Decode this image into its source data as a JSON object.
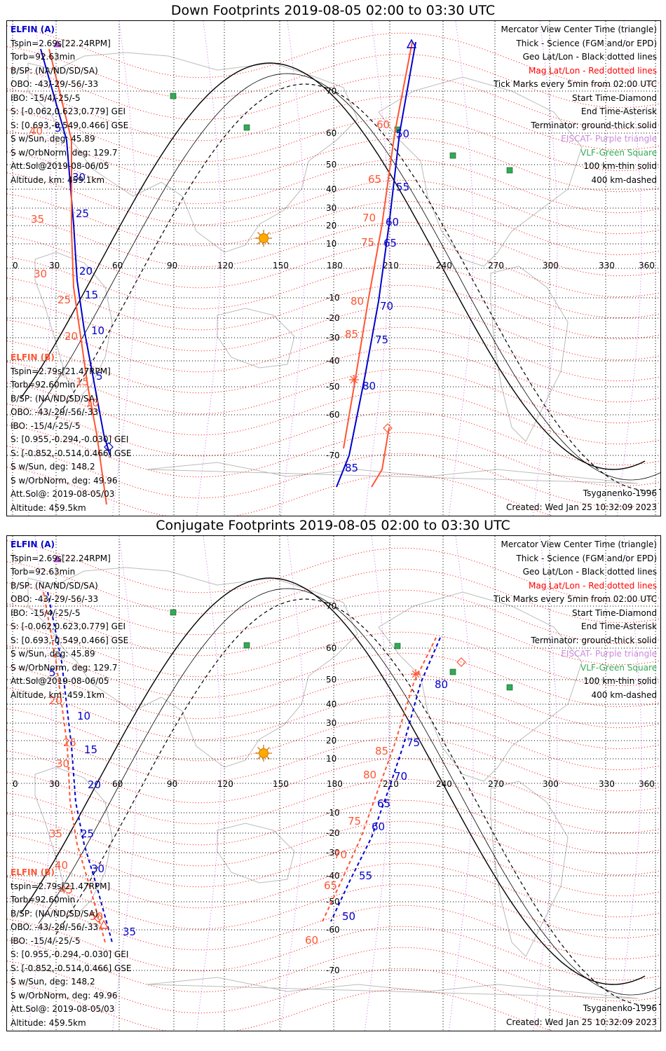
{
  "panels": [
    {
      "title": "Down Footprints 2019-08-05 02:00 to 03:30 UTC",
      "sc_a": {
        "name": "ELFIN (A)",
        "lines": [
          "Tspin=2.69s[22.24RPM]",
          "Torb=92.63min",
          "B/SP: (NA/ND/SD/SA)",
          "OBO: -43/-29/-56/-33",
          "IBO: -15/4/-25/-5",
          "S: [-0.062,0.623,0.779] GEI",
          "S: [0.693,-0.549,0.466] GSE",
          "S w/Sun, deg: 45.89",
          "S w/OrbNorm, deg: 129.7",
          "Att.Sol@2019-08-06/05",
          "Altitude, km: 459.1km"
        ]
      },
      "sc_b": {
        "name": "ELFIN (B)",
        "lines": [
          "Tspin=2.79s[21.47RPM]",
          "Torb=92.60min",
          "B/SP: (NA/ND/SD/SA)",
          "OBO: -43/-29/-56/-33",
          "IBO: -15/4/-25/-5",
          "S: [0.955,-0.294,-0.030] GEI",
          "S: [-0.852,-0.514,0.466] GSE",
          "S w/Sun, deg: 148.2",
          "S w/OrbNorm, deg: 49.96",
          "Att.Sol@: 2019-08-05/03",
          "Altitude: 459.5km"
        ]
      },
      "ticks_a": [
        {
          "text": "5",
          "color": "#0000cc"
        },
        {
          "text": "30",
          "color": "#0000cc"
        },
        {
          "text": "25",
          "color": "#0000cc"
        },
        {
          "text": "20",
          "color": "#0000cc"
        },
        {
          "text": "15",
          "color": "#0000cc"
        },
        {
          "text": "10",
          "color": "#0000cc"
        },
        {
          "text": "5",
          "color": "#0000cc"
        },
        {
          "text": "50",
          "color": "#0000cc"
        },
        {
          "text": "55",
          "color": "#0000cc"
        },
        {
          "text": "60",
          "color": "#0000cc"
        },
        {
          "text": "65",
          "color": "#0000cc"
        },
        {
          "text": "70",
          "color": "#0000cc"
        },
        {
          "text": "75",
          "color": "#0000cc"
        },
        {
          "text": "80",
          "color": "#0000cc"
        },
        {
          "text": "85",
          "color": "#0000cc"
        }
      ],
      "ticks_b": [
        {
          "text": "40",
          "color": "#ff5533"
        },
        {
          "text": "35",
          "color": "#ff5533"
        },
        {
          "text": "30",
          "color": "#ff5533"
        },
        {
          "text": "25",
          "color": "#ff5533"
        },
        {
          "text": "20",
          "color": "#ff5533"
        },
        {
          "text": "15",
          "color": "#ff5533"
        },
        {
          "text": "10",
          "color": "#ff5533"
        },
        {
          "text": "60",
          "color": "#ff5533"
        },
        {
          "text": "65",
          "color": "#ff5533"
        },
        {
          "text": "70",
          "color": "#ff5533"
        },
        {
          "text": "75",
          "color": "#ff5533"
        },
        {
          "text": "80",
          "color": "#ff5533"
        },
        {
          "text": "85",
          "color": "#ff5533"
        }
      ]
    },
    {
      "title": "Conjugate Footprints 2019-08-05 02:00 to 03:30 UTC",
      "sc_a": {
        "name": "ELFIN (A)",
        "lines": [
          "Tspin=2.69s[22.24RPM]",
          "Torb=92.63min",
          "B/SP: (NA/ND/SD/SA)",
          "OBO: -43/-29/-56/-33",
          "IBO: -15/4/-25/-5",
          "S: [-0.062,0.623,0.779] GEI",
          "S: [0.693,-0.549,0.466] GSE",
          "S w/Sun, deg: 45.89",
          "S w/OrbNorm, deg: 129.7",
          "Att.Sol@2019-08-06/05",
          "Altitude, km: 459.1km"
        ]
      },
      "sc_b": {
        "name": "ELFIN (B)",
        "lines": [
          "tspin=2.79s[21.47RPM]",
          "Torb=92.60min",
          "B/SP: (NA/ND/SD/SA)",
          "OBO: -43/-29/-56/-33",
          "IBO: -15/4/-25/-5",
          "S: [0.955,-0.294,-0.030] GEI",
          "S: [-0.852,-0.514,0.466] GSE",
          "S w/Sun, deg: 148.2",
          "S w/OrbNorm, deg: 49.96",
          "Att.Sol@: 2019-08-05/03",
          "Altitude: 459.5km"
        ]
      },
      "ticks_a": [
        {
          "text": "5",
          "color": "#0000cc"
        },
        {
          "text": "10",
          "color": "#0000cc"
        },
        {
          "text": "15",
          "color": "#0000cc"
        },
        {
          "text": "20",
          "color": "#0000cc"
        },
        {
          "text": "25",
          "color": "#0000cc"
        },
        {
          "text": "30",
          "color": "#0000cc"
        },
        {
          "text": "35",
          "color": "#0000cc"
        },
        {
          "text": "50",
          "color": "#0000cc"
        },
        {
          "text": "55",
          "color": "#0000cc"
        },
        {
          "text": "60",
          "color": "#0000cc"
        },
        {
          "text": "65",
          "color": "#0000cc"
        },
        {
          "text": "70",
          "color": "#0000cc"
        },
        {
          "text": "75",
          "color": "#0000cc"
        },
        {
          "text": "80",
          "color": "#0000cc"
        }
      ],
      "ticks_b": [
        {
          "text": "20",
          "color": "#ff5533"
        },
        {
          "text": "25",
          "color": "#ff5533"
        },
        {
          "text": "30",
          "color": "#ff5533"
        },
        {
          "text": "35",
          "color": "#ff5533"
        },
        {
          "text": "40",
          "color": "#ff5533"
        },
        {
          "text": "45",
          "color": "#ff5533"
        },
        {
          "text": "50",
          "color": "#ff5533"
        },
        {
          "text": "60",
          "color": "#ff5533"
        },
        {
          "text": "65",
          "color": "#ff5533"
        },
        {
          "text": "70",
          "color": "#ff5533"
        },
        {
          "text": "75",
          "color": "#ff5533"
        },
        {
          "text": "80",
          "color": "#ff5533"
        },
        {
          "text": "85",
          "color": "#ff5533"
        }
      ]
    }
  ],
  "legend": [
    {
      "text": "Mercator View Center Time (triangle)",
      "color": "#000000"
    },
    {
      "text": "Thick - Science (FGM and/or EPD)",
      "color": "#000000"
    },
    {
      "text": "Geo Lat/Lon - Black dotted lines",
      "color": "#000000"
    },
    {
      "text": "Mag Lat/Lon - Red dotted lines",
      "color": "#ff0000"
    },
    {
      "text": "Tick Marks every 5min from 02:00 UTC",
      "color": "#000000"
    },
    {
      "text": "Start Time-Diamond",
      "color": "#000000"
    },
    {
      "text": "End Time-Asterisk",
      "color": "#000000"
    },
    {
      "text": "Terminator: ground-thick solid",
      "color": "#000000"
    },
    {
      "text": "EISCAT- Purple triangle",
      "color": "#cc88dd"
    },
    {
      "text": "VLF-Green Square",
      "color": "#33aa55"
    },
    {
      "text": "100 km-thin solid",
      "color": "#000000"
    },
    {
      "text": "400 km-dashed",
      "color": "#000000"
    }
  ],
  "footer": {
    "model": "Tsyganenko-1996",
    "created": "Created: Wed Jan 25 10:32:09 2023"
  },
  "lon_labels": [
    "0",
    "30",
    "60",
    "90",
    "120",
    "150",
    "180",
    "210",
    "240",
    "270",
    "300",
    "330",
    "360"
  ],
  "lat_labels": [
    "70",
    "60",
    "50",
    "40",
    "30",
    "20",
    "10",
    "-10",
    "-20",
    "-30",
    "-40",
    "-50",
    "-60",
    "-70"
  ],
  "colors": {
    "sc_a": "#0000cc",
    "sc_b": "#ff5533",
    "mag_grid": "#ff0000",
    "geo_grid": "#000000",
    "vlf": "#33aa55",
    "eiscat": "#cc66ee",
    "sun": "#ffaa00",
    "coast": "#bbbbbb"
  },
  "icons": [
    "sun-icon",
    "vlf-station-square-icon",
    "start-diamond-icon",
    "end-asterisk-icon",
    "center-triangle-icon"
  ]
}
